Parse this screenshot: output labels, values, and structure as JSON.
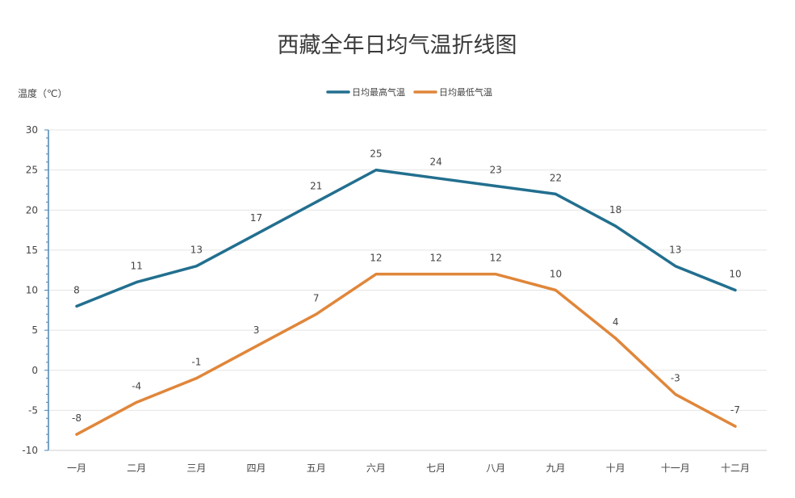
{
  "chart_data": {
    "type": "line",
    "title": "西藏全年日均气温折线图",
    "ylabel": "温度（℃）",
    "categories": [
      "一月",
      "二月",
      "三月",
      "四月",
      "五月",
      "六月",
      "七月",
      "八月",
      "九月",
      "十月",
      "十一月",
      "十二月"
    ],
    "series": [
      {
        "name": "日均最高气温",
        "color": "#226f8f",
        "values": [
          8,
          11,
          13,
          17,
          21,
          25,
          24,
          23,
          22,
          18,
          13,
          10
        ]
      },
      {
        "name": "日均最低气温",
        "color": "#e0863a",
        "values": [
          -8,
          -4,
          -1,
          3,
          7,
          12,
          12,
          12,
          10,
          4,
          -3,
          -7
        ]
      }
    ],
    "yticks": [
      30,
      25,
      20,
      15,
      10,
      5,
      0,
      -5,
      -10
    ],
    "ylim": [
      -10,
      30
    ],
    "grid": true,
    "legend_position": "top"
  }
}
